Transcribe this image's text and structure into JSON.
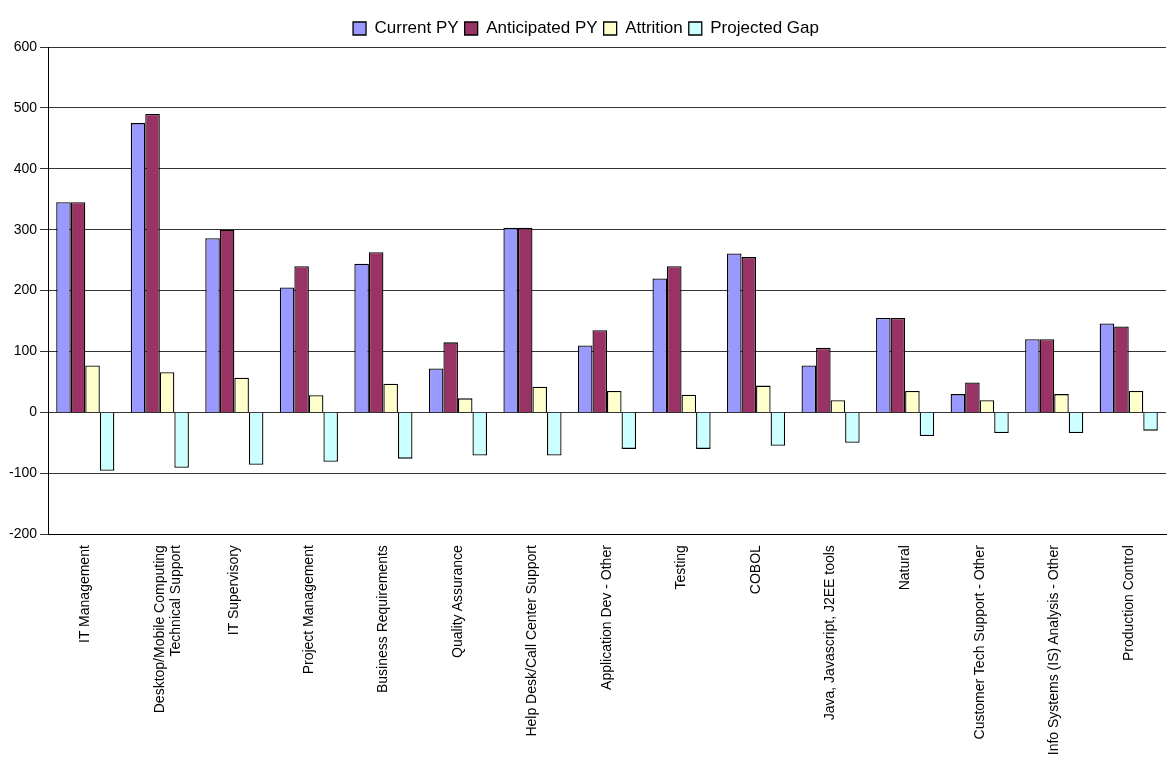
{
  "chart_data": {
    "type": "bar",
    "categories": [
      "IT Management",
      "Desktop/Mobile Computing\nTechnical Support",
      "IT Supervisory",
      "Project Management",
      "Business Requirements",
      "Quality Assurance",
      "Help Desk/Call Center Support",
      "Application Dev - Other",
      "Testing",
      "COBOL",
      "Java, Javascript, J2EE tools",
      "Natural",
      "Customer Tech Support - Other",
      "Info Systems (IS) Analysis - Other",
      "Production Control"
    ],
    "series": [
      {
        "name": "Current PY",
        "color": "#9999ff",
        "values": [
          345,
          475,
          286,
          205,
          244,
          72,
          303,
          110,
          220,
          261,
          77,
          155,
          30,
          120,
          146
        ]
      },
      {
        "name": "Anticipated PY",
        "color": "#993366",
        "values": [
          345,
          490,
          300,
          240,
          263,
          115,
          303,
          135,
          240,
          255,
          106,
          155,
          49,
          120,
          141
        ]
      },
      {
        "name": "Attrition",
        "color": "#ffffcc",
        "values": [
          77,
          66,
          57,
          28,
          47,
          23,
          42,
          35,
          29,
          44,
          20,
          35,
          20,
          30,
          35
        ]
      },
      {
        "name": "Projected Gap",
        "color": "#ccffff",
        "values": [
          -96,
          -91,
          -86,
          -81,
          -76,
          -71,
          -71,
          -60,
          -60,
          -55,
          -50,
          -39,
          -34,
          -34,
          -30
        ]
      }
    ],
    "ylim": [
      -200,
      600
    ],
    "yticks": [
      -200,
      -100,
      0,
      100,
      200,
      300,
      400,
      500,
      600
    ],
    "grid": "y",
    "legend": "top"
  }
}
